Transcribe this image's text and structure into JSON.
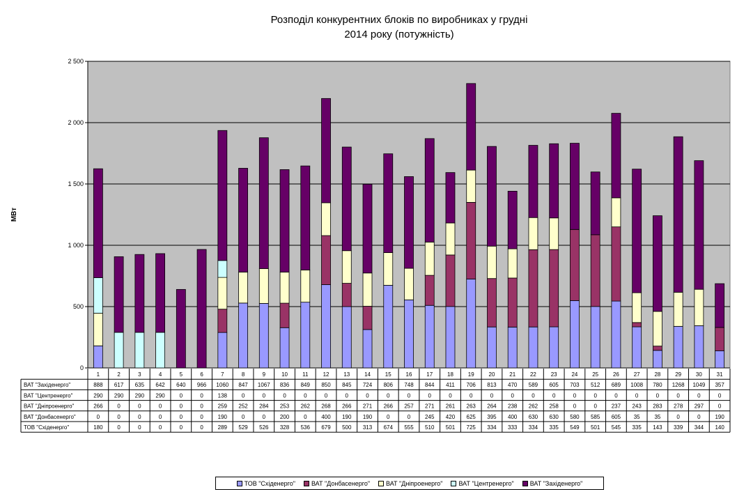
{
  "chart_data": {
    "type": "bar",
    "stacked": true,
    "title_line1": "Розподіл конкурентних  блоків по виробниках  у грудні",
    "title_line2": "2014 року  (потужність)",
    "ylabel": "МВт",
    "ylim": [
      0,
      2500
    ],
    "yticks": [
      "0",
      "500",
      "1 000",
      "1 500",
      "2 000",
      "2 500"
    ],
    "grid": true,
    "legend_position": "bottom",
    "categories": [
      "1",
      "2",
      "3",
      "4",
      "5",
      "6",
      "7",
      "8",
      "9",
      "10",
      "11",
      "12",
      "13",
      "14",
      "15",
      "16",
      "17",
      "18",
      "19",
      "20",
      "21",
      "22",
      "23",
      "24",
      "25",
      "26",
      "27",
      "28",
      "29",
      "30",
      "31"
    ],
    "series": [
      {
        "name": "ТОВ \"Східенерго\"",
        "color": "#9999ff",
        "values": [
          180,
          0,
          0,
          0,
          0,
          0,
          289,
          529,
          526,
          328,
          536,
          679,
          500,
          313,
          674,
          555,
          510,
          501,
          725,
          334,
          333,
          334,
          335,
          549,
          501,
          545,
          335,
          143,
          339,
          344,
          140
        ]
      },
      {
        "name": "ВАТ \"Донбасенерго\"",
        "color": "#993366",
        "values": [
          0,
          0,
          0,
          0,
          0,
          0,
          190,
          0,
          0,
          200,
          0,
          400,
          190,
          190,
          0,
          0,
          245,
          420,
          625,
          395,
          400,
          630,
          630,
          580,
          585,
          605,
          35,
          35,
          0,
          0,
          190
        ]
      },
      {
        "name": "ВАТ \"Дніпроенерго\"",
        "color": "#ffffcc",
        "values": [
          266,
          0,
          0,
          0,
          0,
          0,
          259,
          252,
          284,
          253,
          262,
          268,
          266,
          271,
          266,
          257,
          271,
          261,
          263,
          264,
          238,
          262,
          258,
          0,
          0,
          237,
          243,
          283,
          278,
          297,
          0
        ]
      },
      {
        "name": "ВАТ \"Центренерго\"",
        "color": "#ccffff",
        "values": [
          290,
          290,
          290,
          290,
          0,
          0,
          138,
          0,
          0,
          0,
          0,
          0,
          0,
          0,
          0,
          0,
          0,
          0,
          0,
          0,
          0,
          0,
          0,
          0,
          0,
          0,
          0,
          0,
          0,
          0,
          0
        ]
      },
      {
        "name": "ВАТ \"Західенерго\"",
        "color": "#660066",
        "values": [
          888,
          617,
          635,
          642,
          640,
          966,
          1060,
          847,
          1067,
          836,
          849,
          850,
          845,
          724,
          806,
          748,
          844,
          411,
          706,
          813,
          470,
          589,
          605,
          703,
          512,
          689,
          1008,
          780,
          1268,
          1049,
          357
        ]
      }
    ],
    "table_order": [
      4,
      3,
      2,
      1,
      0
    ]
  }
}
